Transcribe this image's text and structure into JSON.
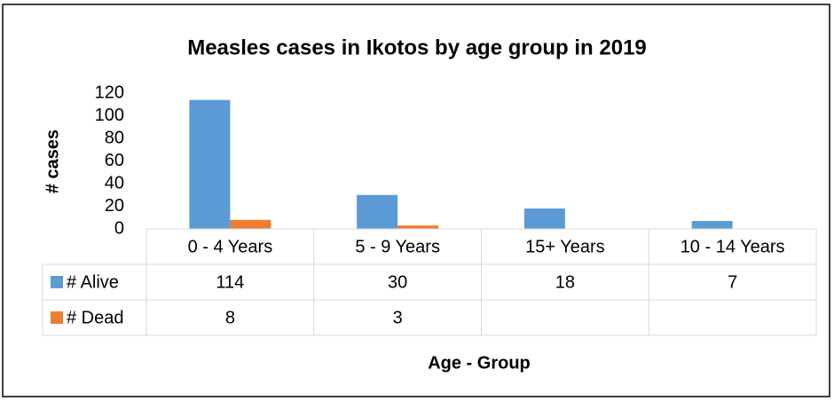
{
  "chart_data": {
    "type": "bar",
    "title": "Measles cases in Ikotos by age group in 2019",
    "x_label": "Age - Group",
    "y_label": "# cases",
    "categories": [
      "0 - 4 Years",
      "5 - 9 Years",
      "15+ Years",
      "10 - 14 Years"
    ],
    "series": [
      {
        "name": "# Alive",
        "color": "#5b9bd5",
        "values": [
          114,
          30,
          18,
          7
        ]
      },
      {
        "name": "# Dead",
        "color": "#ed7d31",
        "values": [
          8,
          3,
          null,
          null
        ]
      }
    ],
    "ylim": [
      0,
      120
    ],
    "yticks": [
      0,
      20,
      40,
      60,
      80,
      100,
      120
    ],
    "grid": false
  }
}
